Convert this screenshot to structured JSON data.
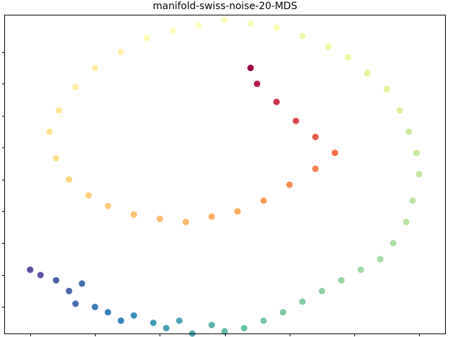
{
  "chart_data": {
    "type": "scatter",
    "title": "manifold-swiss-noise-20-MDS",
    "xlabel": "",
    "ylabel": "",
    "xlim": [
      -1.7,
      1.7
    ],
    "ylim": [
      -1.5,
      1.5
    ],
    "xticks": [
      -1.5,
      -1.0,
      -0.5,
      0.0,
      0.5,
      1.0,
      1.5
    ],
    "yticks": [
      -1.25,
      -0.95,
      -0.65,
      -0.35,
      -0.05,
      0.25,
      0.55,
      0.85,
      1.15
    ],
    "tick_labels_shown": false,
    "grid": false,
    "legend": "none",
    "colormap": "Spectral",
    "colormap_stops": [
      "#5e4fa2",
      "#3288bd",
      "#66c2a5",
      "#abdda4",
      "#e6f598",
      "#ffffbf",
      "#fee08b",
      "#fdae61",
      "#f46d43",
      "#d53e4f",
      "#9e0142"
    ],
    "color_variable": "position along the swiss-roll manifold (0 = start, 1 = end)",
    "points": [
      {
        "x": -1.5,
        "y": -0.9,
        "c": 0.0
      },
      {
        "x": -1.42,
        "y": -0.95,
        "c": 0.01
      },
      {
        "x": -1.3,
        "y": -1.0,
        "c": 0.03
      },
      {
        "x": -1.2,
        "y": -1.1,
        "c": 0.04
      },
      {
        "x": -1.15,
        "y": -1.22,
        "c": 0.05
      },
      {
        "x": -1.1,
        "y": -1.03,
        "c": 0.06
      },
      {
        "x": -1.0,
        "y": -1.25,
        "c": 0.08
      },
      {
        "x": -0.9,
        "y": -1.3,
        "c": 0.09
      },
      {
        "x": -0.8,
        "y": -1.38,
        "c": 0.1
      },
      {
        "x": -0.7,
        "y": -1.33,
        "c": 0.11
      },
      {
        "x": -0.55,
        "y": -1.4,
        "c": 0.13
      },
      {
        "x": -0.45,
        "y": -1.45,
        "c": 0.14
      },
      {
        "x": -0.35,
        "y": -1.38,
        "c": 0.15
      },
      {
        "x": -0.25,
        "y": -1.5,
        "c": 0.16
      },
      {
        "x": -0.1,
        "y": -1.42,
        "c": 0.18
      },
      {
        "x": 0.0,
        "y": -1.48,
        "c": 0.19
      },
      {
        "x": 0.15,
        "y": -1.45,
        "c": 0.2
      },
      {
        "x": 0.3,
        "y": -1.38,
        "c": 0.22
      },
      {
        "x": 0.45,
        "y": -1.3,
        "c": 0.23
      },
      {
        "x": 0.6,
        "y": -1.2,
        "c": 0.24
      },
      {
        "x": 0.75,
        "y": -1.1,
        "c": 0.26
      },
      {
        "x": 0.9,
        "y": -1.0,
        "c": 0.27
      },
      {
        "x": 1.05,
        "y": -0.9,
        "c": 0.28
      },
      {
        "x": 1.2,
        "y": -0.8,
        "c": 0.29
      },
      {
        "x": 1.3,
        "y": -0.65,
        "c": 0.3
      },
      {
        "x": 1.4,
        "y": -0.45,
        "c": 0.32
      },
      {
        "x": 1.45,
        "y": -0.25,
        "c": 0.33
      },
      {
        "x": 1.5,
        "y": 0.0,
        "c": 0.34
      },
      {
        "x": 1.48,
        "y": 0.2,
        "c": 0.35
      },
      {
        "x": 1.42,
        "y": 0.4,
        "c": 0.36
      },
      {
        "x": 1.35,
        "y": 0.6,
        "c": 0.38
      },
      {
        "x": 1.25,
        "y": 0.8,
        "c": 0.39
      },
      {
        "x": 1.1,
        "y": 0.95,
        "c": 0.4
      },
      {
        "x": 0.95,
        "y": 1.1,
        "c": 0.42
      },
      {
        "x": 0.8,
        "y": 1.2,
        "c": 0.43
      },
      {
        "x": 0.6,
        "y": 1.3,
        "c": 0.44
      },
      {
        "x": 0.4,
        "y": 1.38,
        "c": 0.46
      },
      {
        "x": 0.2,
        "y": 1.42,
        "c": 0.47
      },
      {
        "x": 0.0,
        "y": 1.45,
        "c": 0.48
      },
      {
        "x": -0.2,
        "y": 1.4,
        "c": 0.5
      },
      {
        "x": -0.4,
        "y": 1.35,
        "c": 0.51
      },
      {
        "x": -0.6,
        "y": 1.28,
        "c": 0.52
      },
      {
        "x": -0.8,
        "y": 1.15,
        "c": 0.54
      },
      {
        "x": -1.0,
        "y": 1.0,
        "c": 0.55
      },
      {
        "x": -1.15,
        "y": 0.82,
        "c": 0.56
      },
      {
        "x": -1.28,
        "y": 0.6,
        "c": 0.58
      },
      {
        "x": -1.35,
        "y": 0.4,
        "c": 0.59
      },
      {
        "x": -1.3,
        "y": 0.15,
        "c": 0.6
      },
      {
        "x": -1.2,
        "y": -0.05,
        "c": 0.62
      },
      {
        "x": -1.05,
        "y": -0.2,
        "c": 0.63
      },
      {
        "x": -0.9,
        "y": -0.3,
        "c": 0.64
      },
      {
        "x": -0.7,
        "y": -0.38,
        "c": 0.66
      },
      {
        "x": -0.5,
        "y": -0.42,
        "c": 0.67
      },
      {
        "x": -0.3,
        "y": -0.45,
        "c": 0.68
      },
      {
        "x": -0.1,
        "y": -0.4,
        "c": 0.7
      },
      {
        "x": 0.1,
        "y": -0.35,
        "c": 0.71
      },
      {
        "x": 0.3,
        "y": -0.25,
        "c": 0.73
      },
      {
        "x": 0.5,
        "y": -0.1,
        "c": 0.75
      },
      {
        "x": 0.7,
        "y": 0.05,
        "c": 0.77
      },
      {
        "x": 0.85,
        "y": 0.2,
        "c": 0.8
      },
      {
        "x": 0.7,
        "y": 0.35,
        "c": 0.84
      },
      {
        "x": 0.55,
        "y": 0.5,
        "c": 0.88
      },
      {
        "x": 0.4,
        "y": 0.68,
        "c": 0.92
      },
      {
        "x": 0.25,
        "y": 0.85,
        "c": 0.96
      },
      {
        "x": 0.2,
        "y": 1.0,
        "c": 1.0
      }
    ]
  }
}
